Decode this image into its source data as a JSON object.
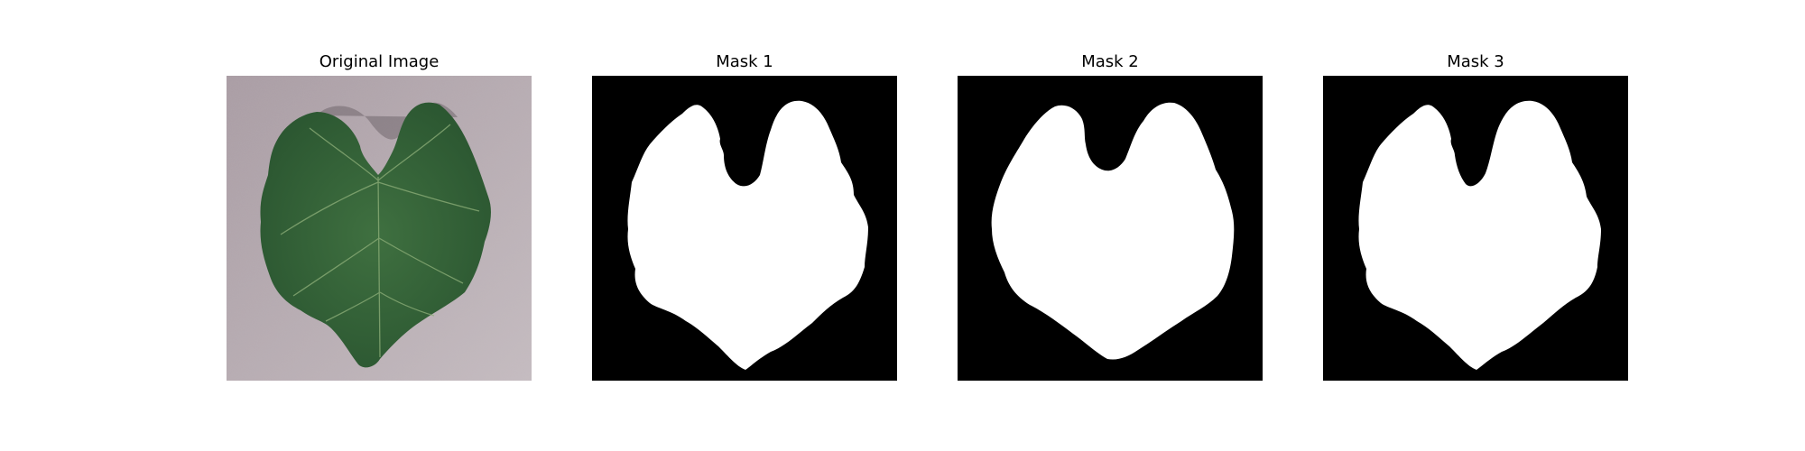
{
  "figure": {
    "panels": [
      {
        "title": "Original Image",
        "kind": "photo",
        "subject": "leaf-photo"
      },
      {
        "title": "Mask 1",
        "kind": "mask"
      },
      {
        "title": "Mask 2",
        "kind": "mask"
      },
      {
        "title": "Mask 3",
        "kind": "mask"
      }
    ]
  },
  "colors": {
    "background": "#ffffff",
    "mask_background": "#000000",
    "mask_foreground": "#ffffff",
    "leaf_dark": "#2e5a2f",
    "leaf_mid": "#3d6e3a",
    "leaf_vein": "#8fb07a",
    "photo_background": "#b9adb4"
  }
}
